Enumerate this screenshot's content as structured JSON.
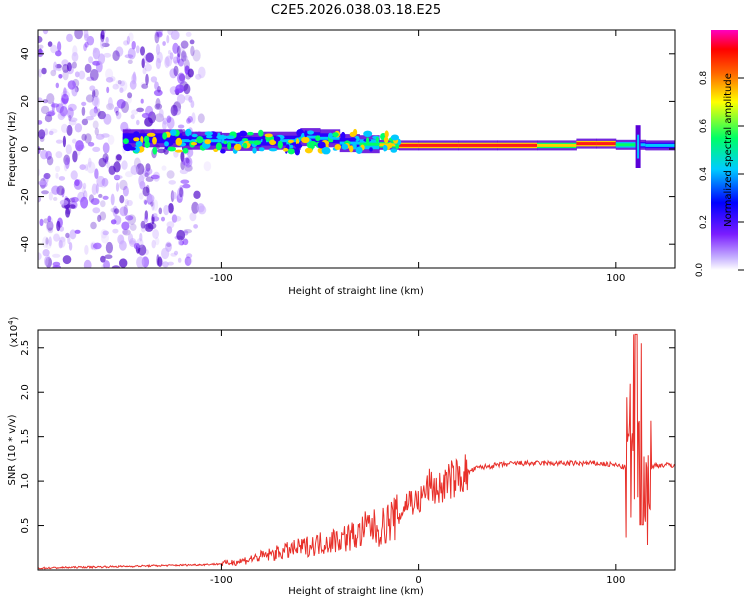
{
  "title": "C2E5.2026.038.03.18.E25",
  "colors": {
    "snr_line": "#e8302a",
    "spectral_main": "#5a00d8"
  },
  "chart_data": [
    {
      "type": "heatmap",
      "name": "spectrogram",
      "xlabel": "Height of straight line (km)",
      "ylabel": "Frequency (Hz)",
      "xlim": [
        -193,
        130
      ],
      "ylim": [
        -50,
        50
      ],
      "x_ticks": [
        -100,
        0,
        100
      ],
      "x_tick_labels": [
        "-100",
        "",
        "100"
      ],
      "y_ticks": [
        -40,
        -20,
        0,
        20,
        40
      ],
      "y_tick_labels": [
        "-40",
        "-20",
        "0",
        "20",
        "40"
      ],
      "colorbar": {
        "label": "Normalized spectral amplitude",
        "range": [
          0,
          1
        ],
        "ticks": [
          0.0,
          0.2,
          0.4,
          0.6,
          0.8
        ],
        "tick_labels": [
          "0.0",
          "0.2",
          "0.4",
          "0.6",
          "0.8"
        ]
      },
      "ridge": {
        "x": [
          -150,
          -120,
          -100,
          -80,
          -60,
          -50,
          -40,
          -30,
          -20,
          -10,
          0,
          20,
          40,
          60,
          80,
          90,
          100,
          110,
          115,
          130
        ],
        "freq_hz": [
          5,
          4,
          3,
          3,
          4,
          6,
          3,
          2,
          2,
          1.5,
          1.5,
          1.5,
          1.5,
          1.5,
          1.5,
          3,
          1.5,
          2,
          1.5,
          1.5
        ],
        "amplitude": [
          0.35,
          0.45,
          0.5,
          0.55,
          0.5,
          0.45,
          0.5,
          0.6,
          0.75,
          0.85,
          0.9,
          0.9,
          0.9,
          0.85,
          0.85,
          0.9,
          0.8,
          0.6,
          0.5,
          0.55
        ]
      }
    },
    {
      "type": "line",
      "name": "snr",
      "xlabel": "Height of straight line (km)",
      "ylabel": "SNR (10 * v/v)",
      "y_scale_label": "(x10",
      "y_scale_exponent": "4",
      "y_scale_suffix": ")",
      "xlim": [
        -193,
        130
      ],
      "ylim": [
        0,
        2.7
      ],
      "x_ticks": [
        -100,
        0,
        100
      ],
      "x_tick_labels": [
        "-100",
        "0",
        "100"
      ],
      "y_ticks": [
        0.5,
        1.0,
        1.5,
        2.0,
        2.5
      ],
      "y_tick_labels": [
        "0.5",
        "1.0",
        "1.5",
        "2.0",
        "2.5"
      ],
      "series": [
        {
          "name": "SNR",
          "x": [
            -193,
            -175,
            -150,
            -130,
            -110,
            -100,
            -90,
            -80,
            -70,
            -60,
            -50,
            -40,
            -30,
            -25,
            -20,
            -15,
            -10,
            -5,
            0,
            5,
            10,
            15,
            20,
            25,
            30,
            40,
            50,
            60,
            70,
            80,
            90,
            100,
            105,
            108,
            110,
            112,
            114,
            116,
            120,
            130
          ],
          "values": [
            0.02,
            0.03,
            0.04,
            0.05,
            0.06,
            0.07,
            0.1,
            0.15,
            0.2,
            0.25,
            0.3,
            0.35,
            0.4,
            0.5,
            0.45,
            0.55,
            0.6,
            0.8,
            0.75,
            0.95,
            0.9,
            1.0,
            1.05,
            1.1,
            1.15,
            1.18,
            1.2,
            1.2,
            1.2,
            1.2,
            1.2,
            1.18,
            1.15,
            1.3,
            1.0,
            1.8,
            0.5,
            1.1,
            1.18,
            1.18
          ]
        }
      ]
    }
  ]
}
